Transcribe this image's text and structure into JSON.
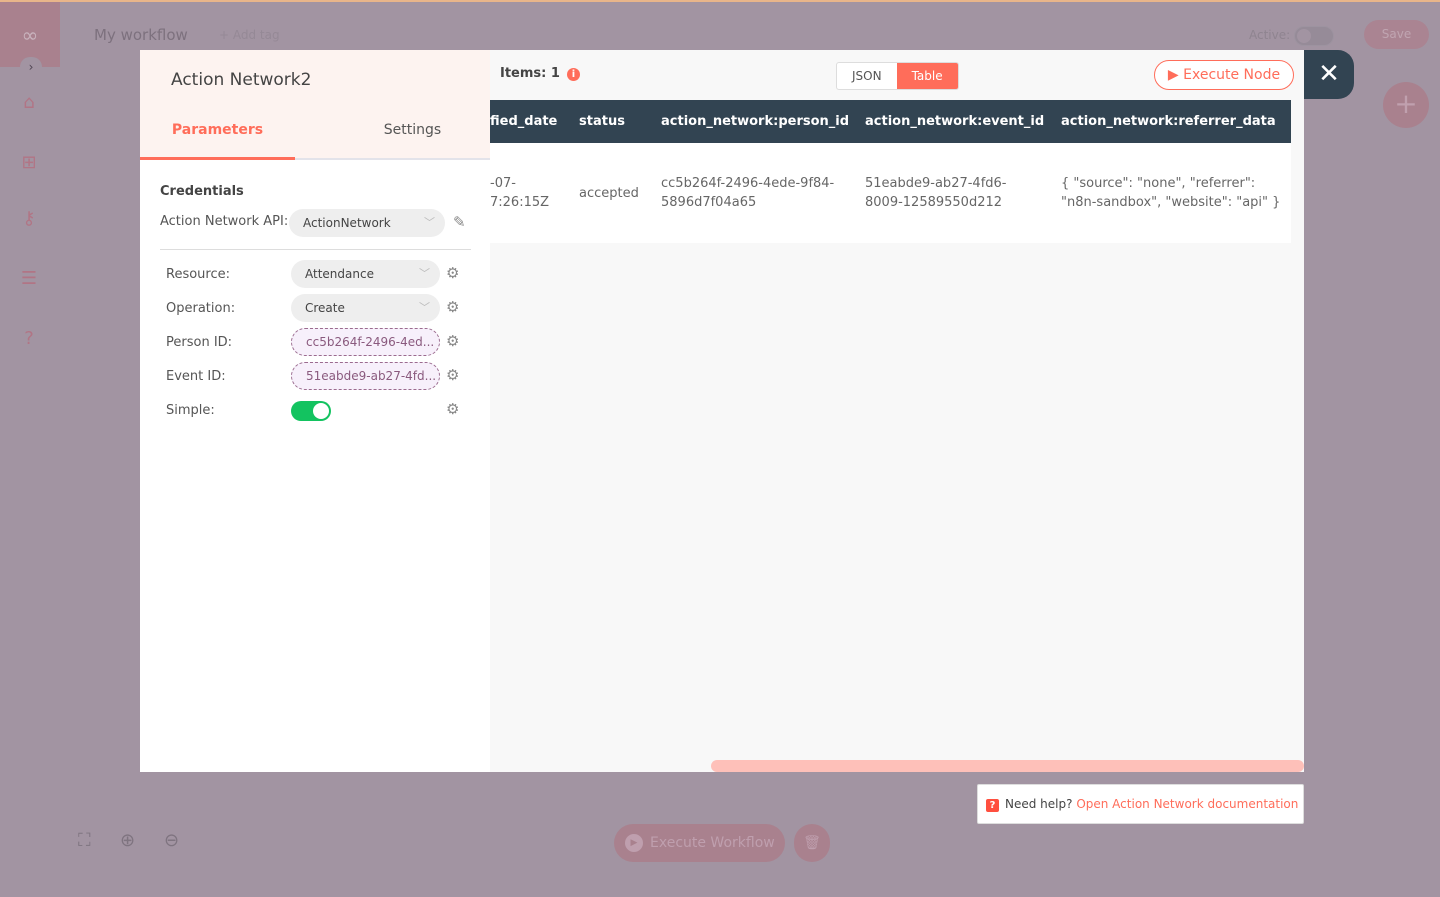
{
  "app": {
    "workflow_title": "My workflow",
    "add_tag": "+ Add tag",
    "active_label": "Active:",
    "active": false,
    "save_label": "Save",
    "execute_workflow_label": "Execute Workflow"
  },
  "colors": {
    "accent": "#ff6d5a",
    "dark": "#324452",
    "toggle_on": "#13c360"
  },
  "node": {
    "title": "Action Network2",
    "tabs": [
      {
        "label": "Parameters",
        "active": true
      },
      {
        "label": "Settings",
        "active": false
      }
    ],
    "credentials_heading": "Credentials",
    "credential_label": "Action Network API:",
    "credential_value": "ActionNetwork",
    "params": [
      {
        "label": "Resource:",
        "value": "Attendance"
      },
      {
        "label": "Operation:",
        "value": "Create"
      },
      {
        "label": "Person ID:",
        "value": "cc5b264f-2496-4ed..."
      },
      {
        "label": "Event ID:",
        "value": "51eabde9-ab27-4fd..."
      },
      {
        "label": "Simple:",
        "value": true
      }
    ]
  },
  "output": {
    "items_label": "Items: 1",
    "view_json": "JSON",
    "view_table": "Table",
    "selected_view": "Table",
    "execute_node": "Execute Node",
    "columns": [
      "fied_date",
      "status",
      "action_network:person_id",
      "action_network:event_id",
      "action_network:referrer_data"
    ],
    "rows": [
      [
        "-07-\n7:26:15Z",
        "accepted",
        "cc5b264f-2496-4ede-9f84-\n5896d7f04a65",
        "51eabde9-ab27-4fd6-\n8009-12589550d212",
        "{ \"source\": \"none\", \"referrer\":\n\"n8n-sandbox\", \"website\": \"api\" }"
      ]
    ]
  },
  "help": {
    "prefix": "Need help?",
    "link": "Open Action Network documentation"
  }
}
